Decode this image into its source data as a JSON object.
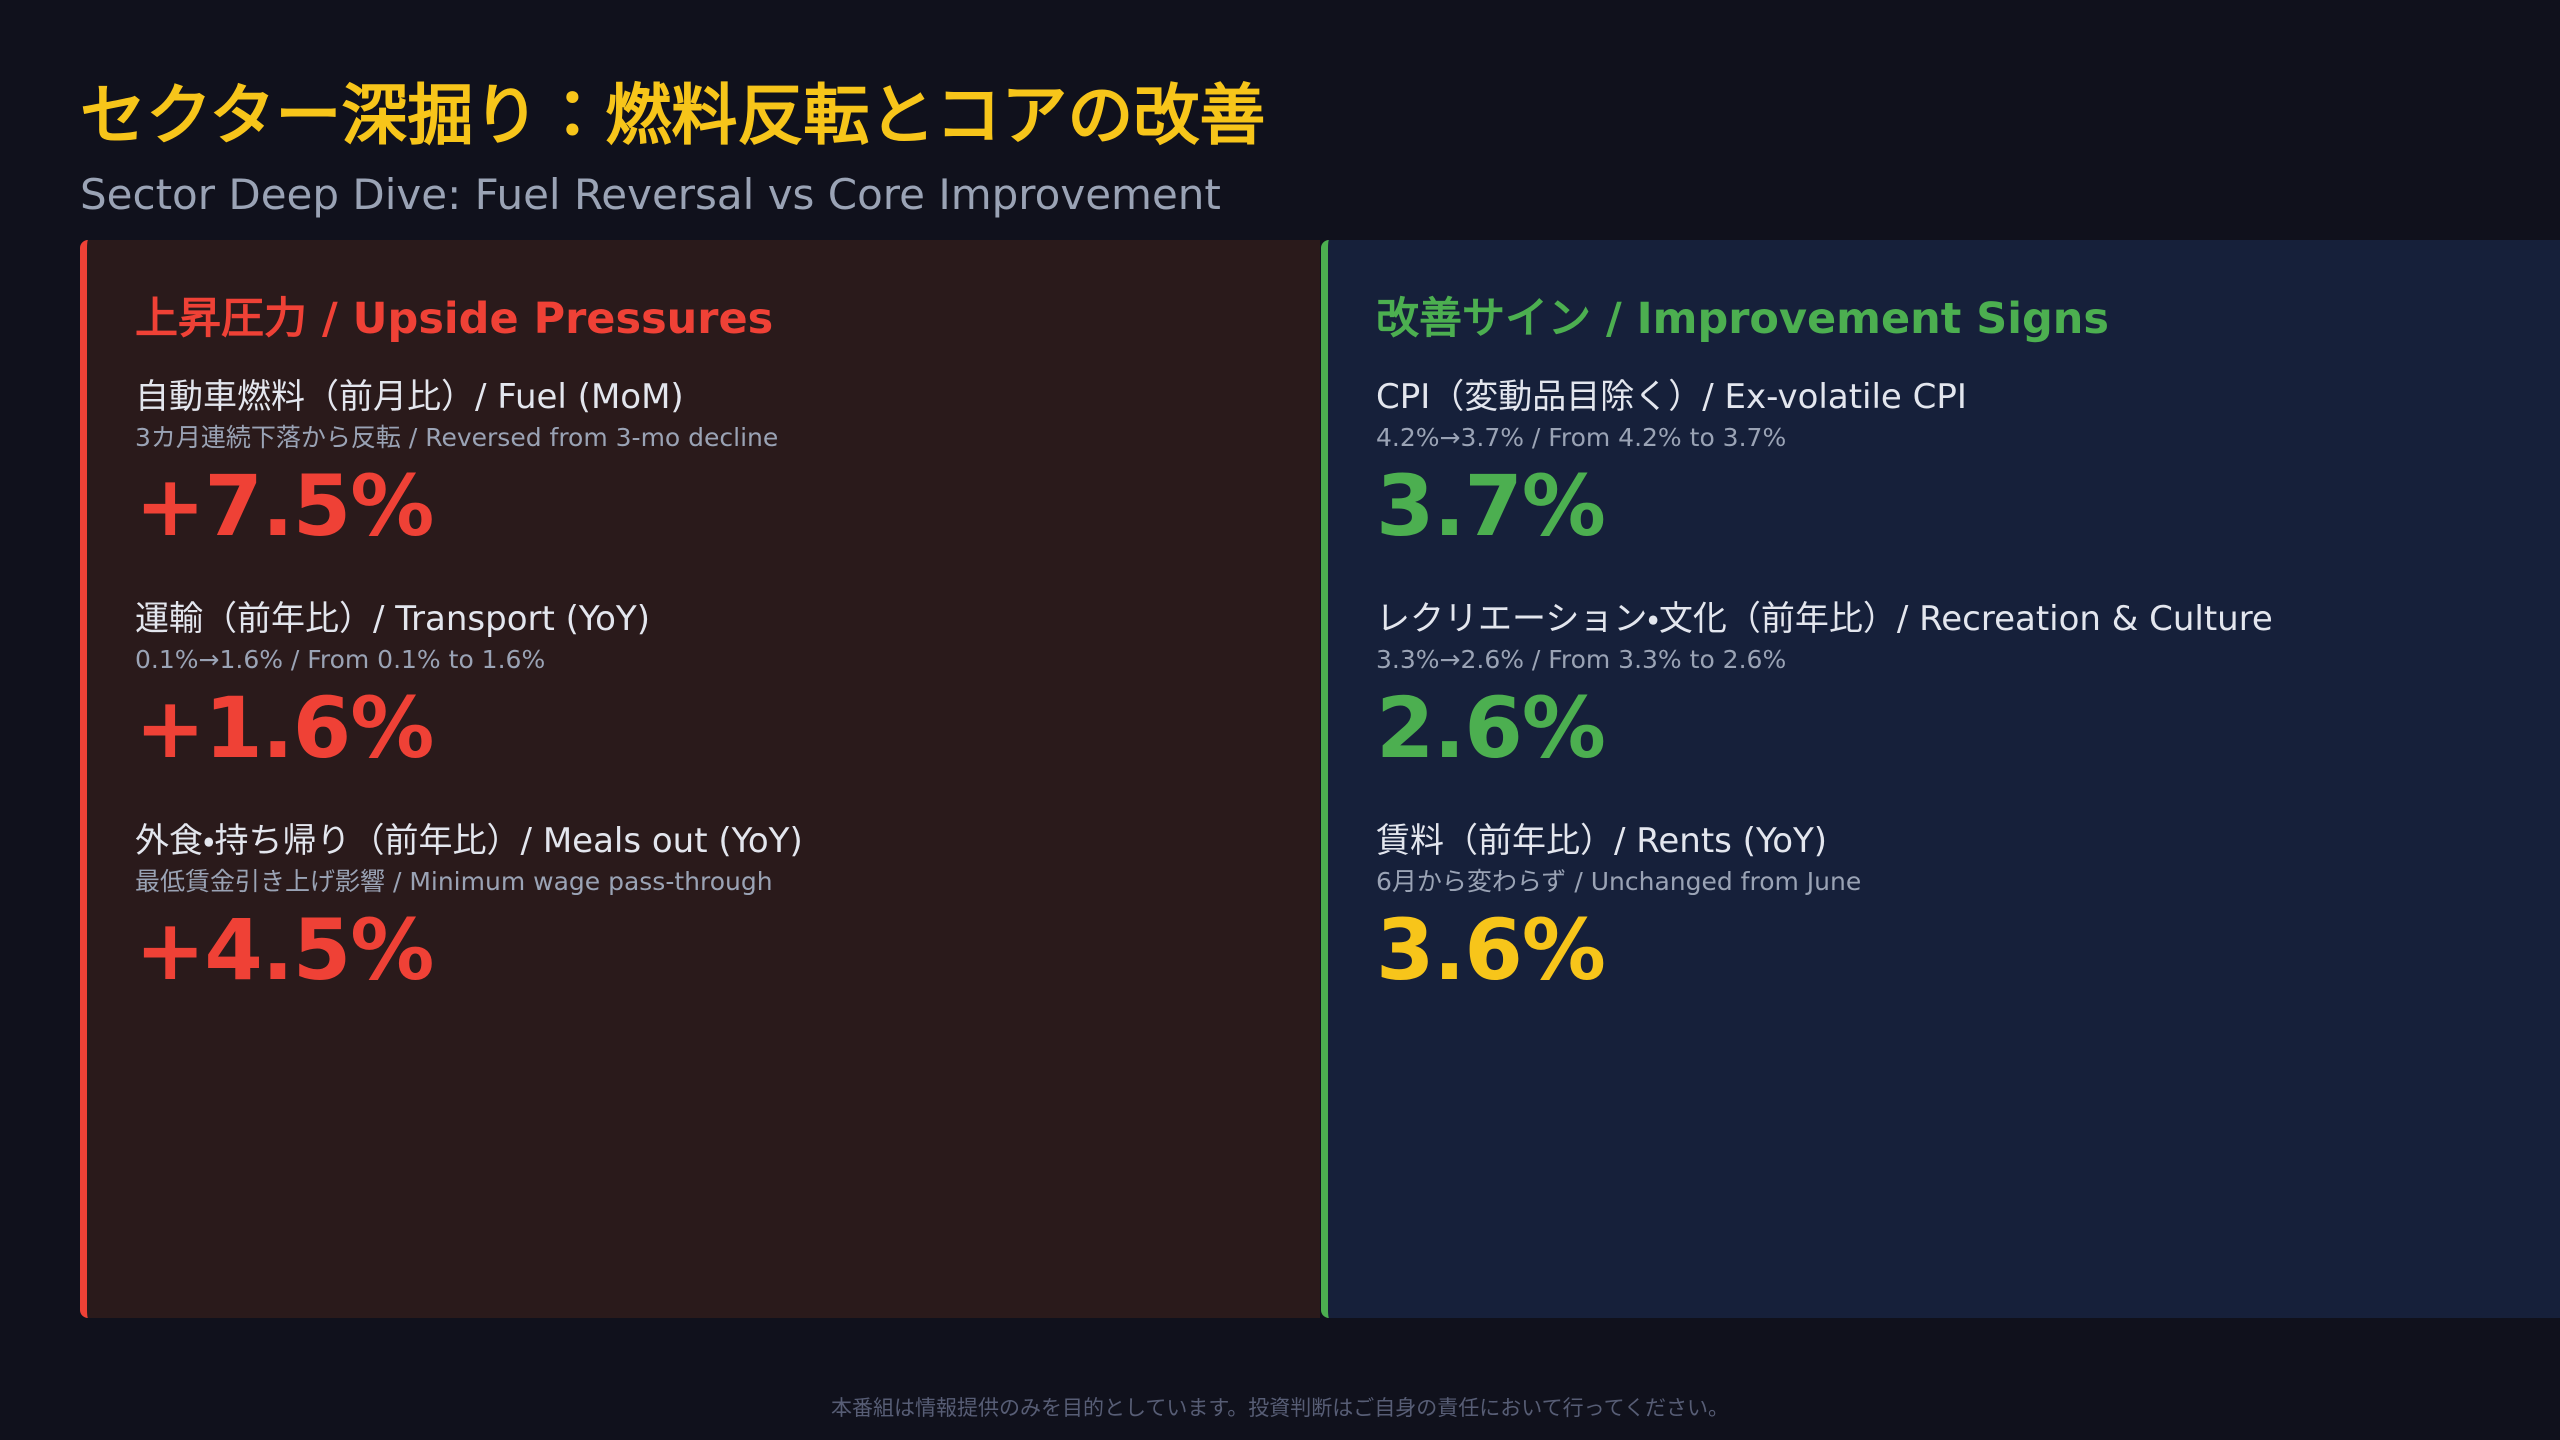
{
  "header": {
    "title": "セクター深掘り：燃料反転とコアの改善",
    "subtitle": "Sector Deep Dive: Fuel Reversal vs Core Improvement"
  },
  "panels": [
    {
      "title": "上昇圧力 / Upside Pressures",
      "items": [
        {
          "label": "自動車燃料（前月比）/ Fuel (MoM)",
          "note": "3カ月連続下落から反転 / Reversed from 3-mo decline",
          "value": "+7.5%"
        },
        {
          "label": "運輸（前年比）/ Transport (YoY)",
          "note": "0.1%→1.6% / From 0.1% to 1.6%",
          "value": "+1.6%"
        },
        {
          "label": "外食・持ち帰り（前年比）/ Meals out (YoY)",
          "note": "最低賃金引き上げ影響 / Minimum wage pass-through",
          "value": "+4.5%"
        }
      ]
    },
    {
      "title": "改善サイン / Improvement Signs",
      "items": [
        {
          "label": "CPI（変動品目除く）/ Ex-volatile CPI",
          "note": "4.2%→3.7% / From 4.2% to 3.7%",
          "value": "3.7%"
        },
        {
          "label": "レクリエーション・文化（前年比）/ Recreation & Culture",
          "note": "3.3%→2.6% / From 3.3% to 2.6%",
          "value": "2.6%"
        },
        {
          "label": "賃料（前年比）/ Rents (YoY)",
          "note": "6月から変わらず / Unchanged from June",
          "value": "3.6%"
        }
      ]
    }
  ],
  "footer": "本番組は情報提供のみを目的としています。投資判断はご自身の責任において行ってください。"
}
